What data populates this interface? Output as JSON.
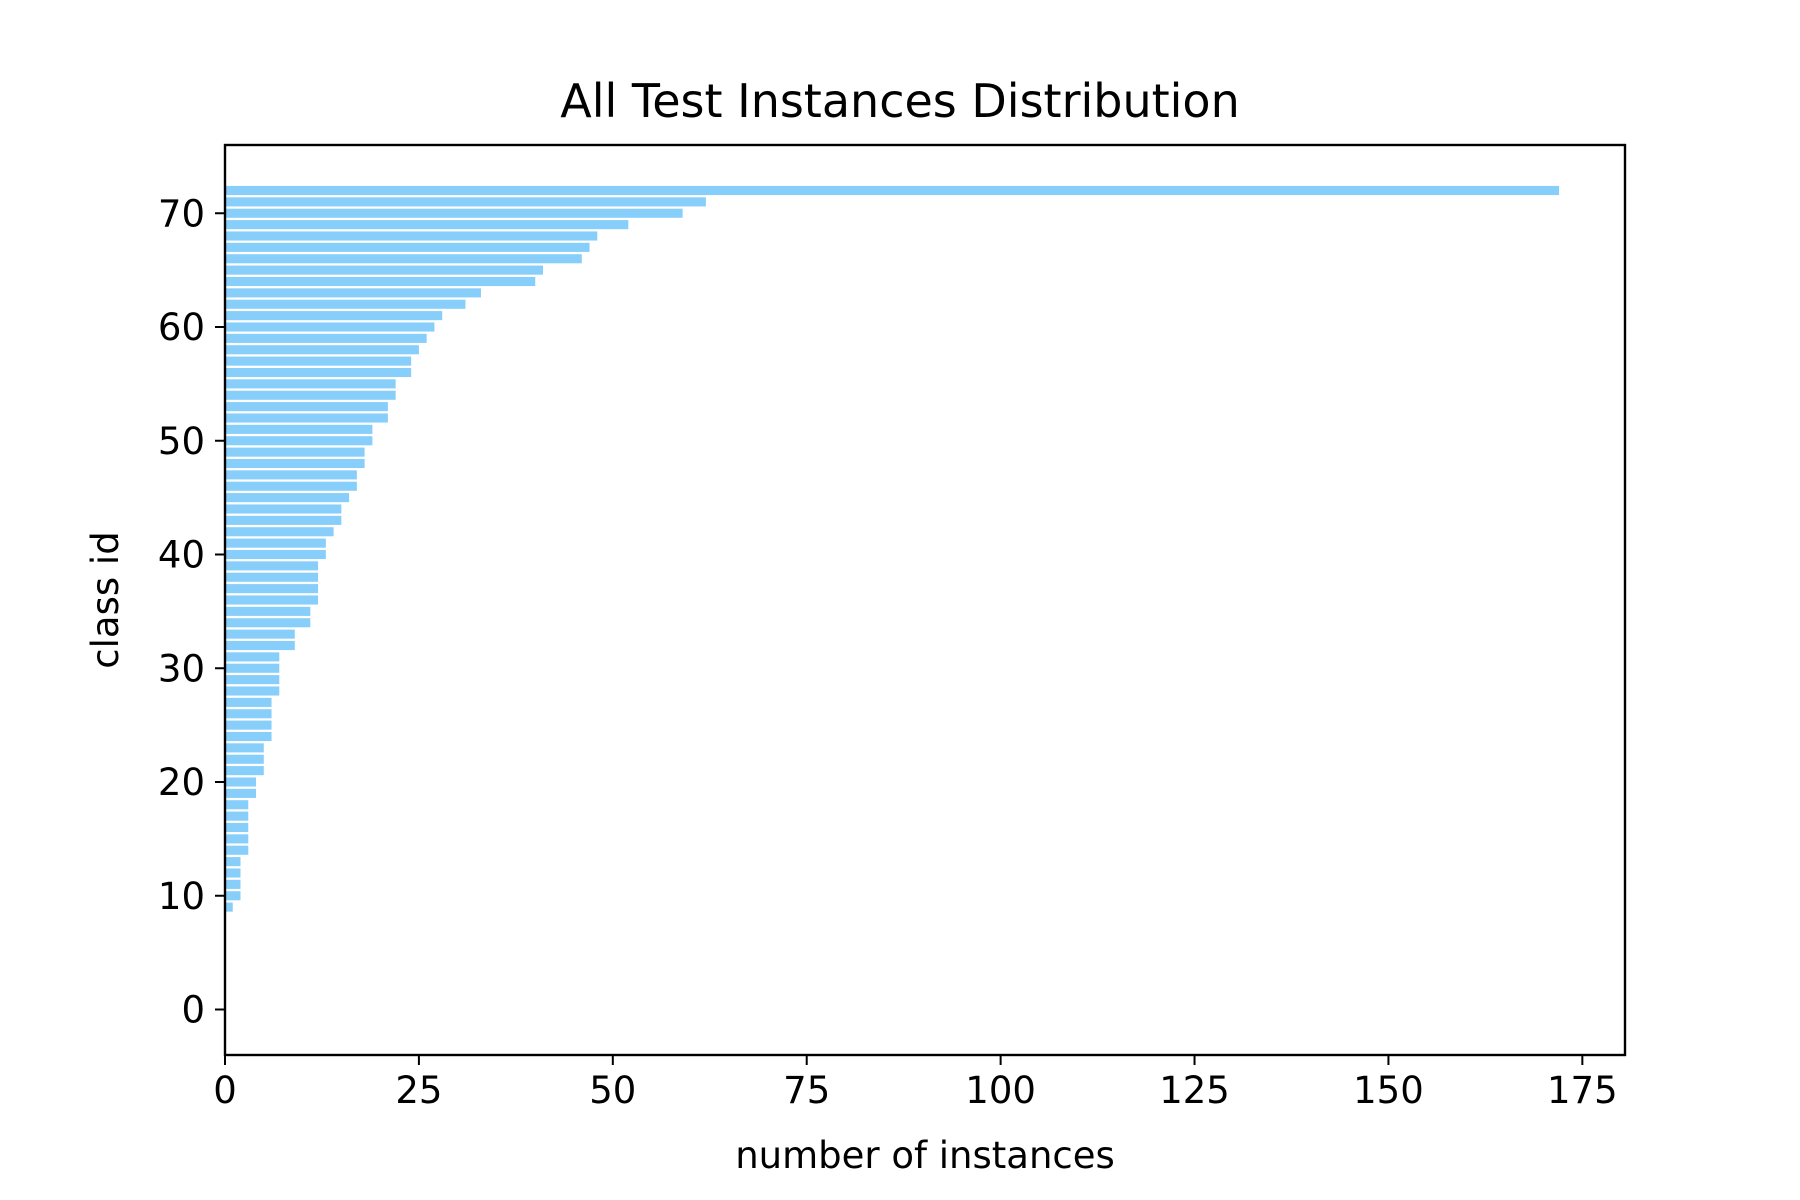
{
  "chart_data": {
    "type": "bar",
    "orientation": "horizontal",
    "title": "All Test Instances Distribution",
    "xlabel": "number of instances",
    "ylabel": "class id",
    "xlim": [
      0,
      180.5
    ],
    "ylim": [
      -4,
      76
    ],
    "xticks": [
      0,
      25,
      50,
      75,
      100,
      125,
      150,
      175
    ],
    "yticks": [
      0,
      10,
      20,
      30,
      40,
      50,
      60,
      70
    ],
    "bar_color": "#87CEFA",
    "grid": false,
    "legend": "none",
    "categories": [
      9,
      10,
      11,
      12,
      13,
      14,
      15,
      16,
      17,
      18,
      19,
      20,
      21,
      22,
      23,
      24,
      25,
      26,
      27,
      28,
      29,
      30,
      31,
      32,
      33,
      34,
      35,
      36,
      37,
      38,
      39,
      40,
      41,
      42,
      43,
      44,
      45,
      46,
      47,
      48,
      49,
      50,
      51,
      52,
      53,
      54,
      55,
      56,
      57,
      58,
      59,
      60,
      61,
      62,
      63,
      64,
      65,
      66,
      67,
      68,
      69,
      70,
      71,
      72
    ],
    "values": [
      1,
      2,
      2,
      2,
      2,
      3,
      3,
      3,
      3,
      3,
      4,
      4,
      5,
      5,
      5,
      6,
      6,
      6,
      6,
      7,
      7,
      7,
      7,
      9,
      9,
      11,
      11,
      12,
      12,
      12,
      12,
      13,
      13,
      14,
      15,
      15,
      16,
      17,
      17,
      18,
      18,
      19,
      19,
      21,
      21,
      22,
      22,
      24,
      24,
      25,
      26,
      27,
      28,
      31,
      33,
      40,
      41,
      46,
      47,
      48,
      52,
      59,
      62,
      172
    ]
  }
}
